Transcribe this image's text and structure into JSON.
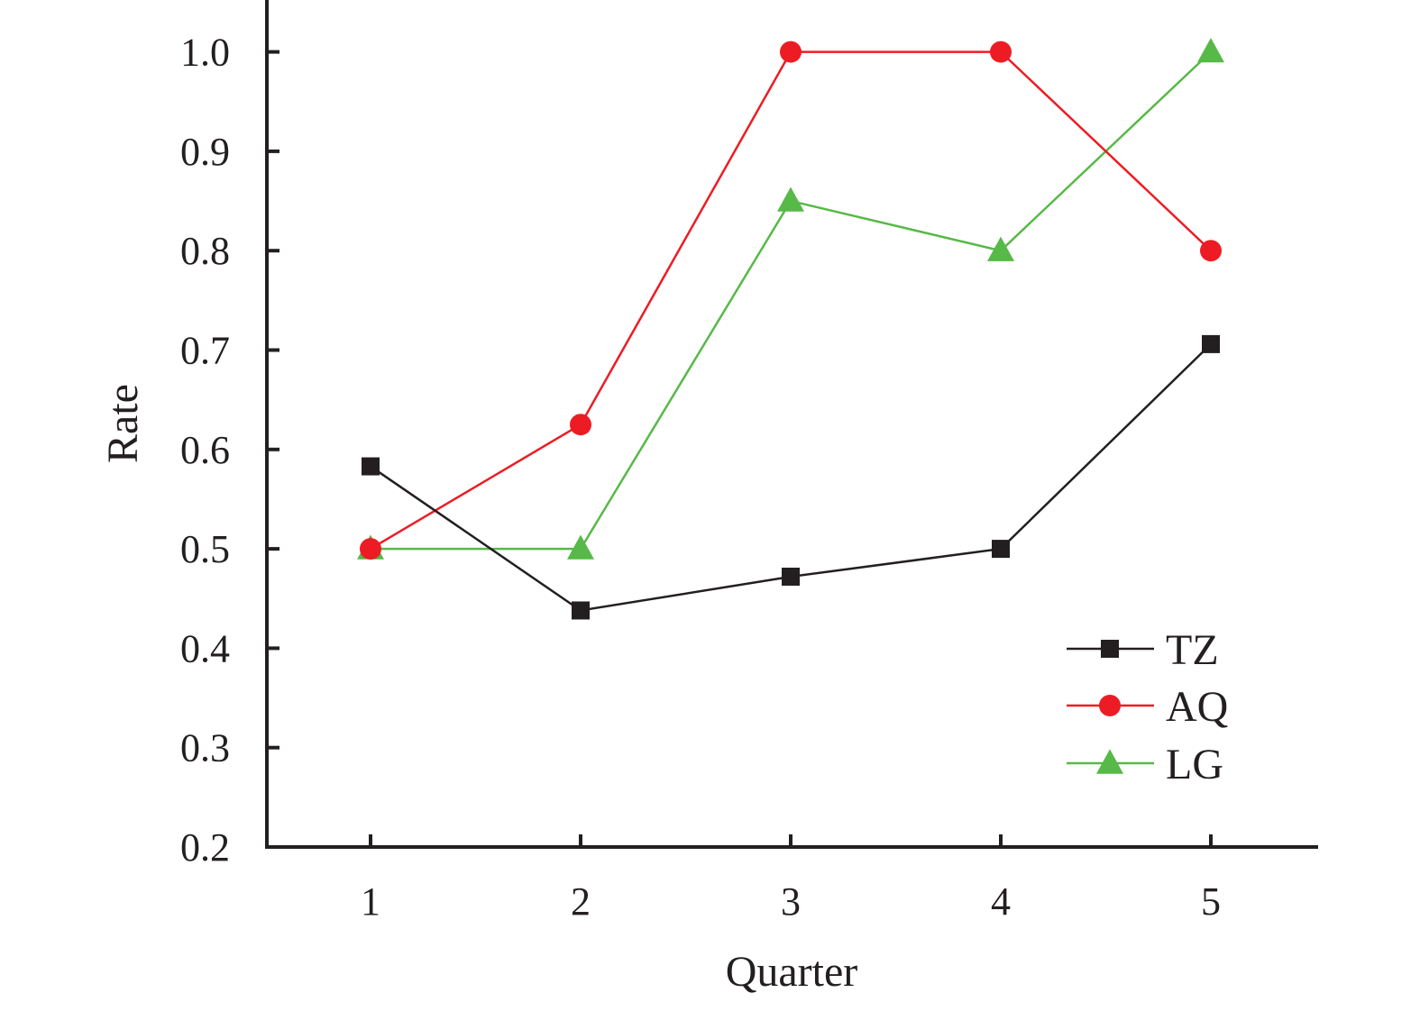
{
  "chart_data": {
    "type": "line",
    "title": "",
    "xlabel": "Quarter",
    "ylabel": "Rate",
    "x": [
      1,
      2,
      3,
      4,
      5
    ],
    "xticks": [
      "1",
      "2",
      "3",
      "4",
      "5"
    ],
    "yticks": [
      "0.2",
      "0.3",
      "0.4",
      "0.5",
      "0.6",
      "0.7",
      "0.8",
      "0.9",
      "1.0"
    ],
    "ylim": [
      0.2,
      1.05
    ],
    "grid": false,
    "legend_position": "bottom-right",
    "series": [
      {
        "name": "TZ",
        "color": "#231f20",
        "marker": "square",
        "values": [
          0.583,
          0.438,
          0.472,
          0.5,
          0.706
        ]
      },
      {
        "name": "AQ",
        "color": "#ed1c24",
        "marker": "circle",
        "values": [
          0.5,
          0.625,
          1.0,
          1.0,
          0.8
        ]
      },
      {
        "name": "LG",
        "color": "#57b947",
        "marker": "triangle",
        "values": [
          0.5,
          0.5,
          0.85,
          0.8,
          1.0
        ]
      }
    ]
  }
}
